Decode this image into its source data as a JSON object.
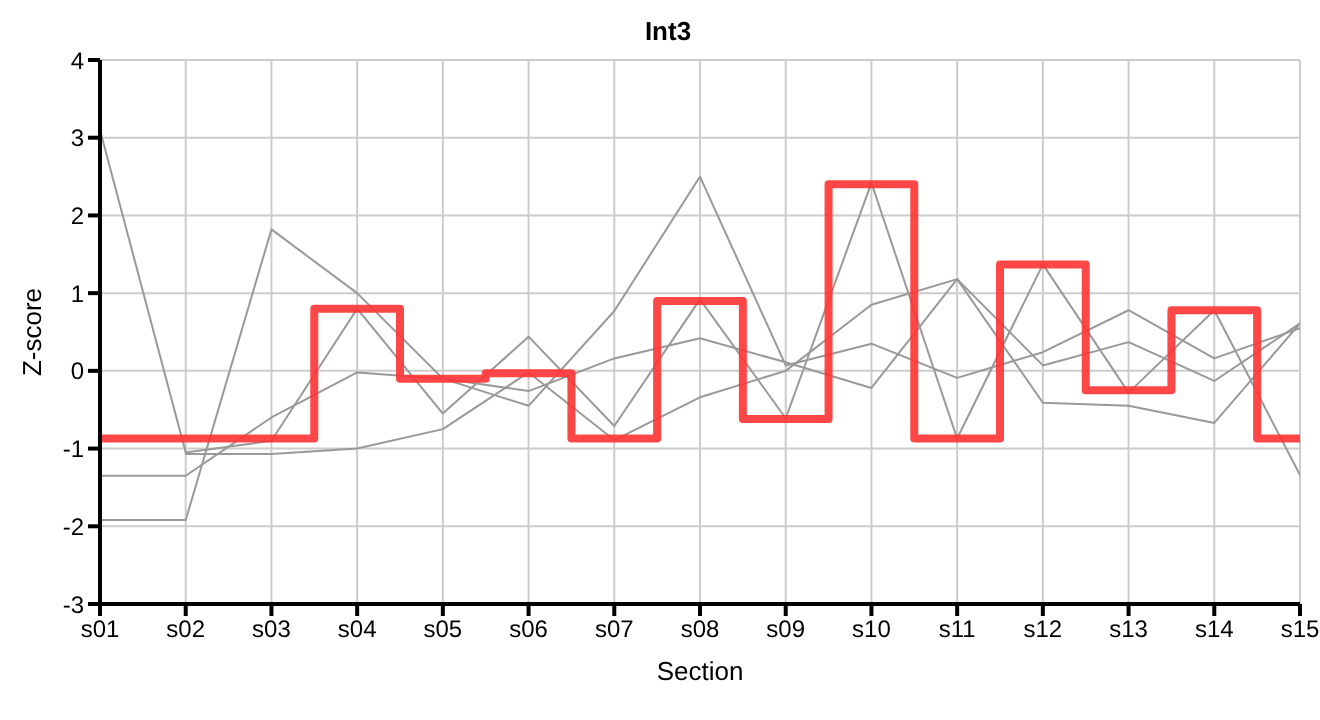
{
  "chart_data": {
    "type": "line",
    "title": "Int3",
    "xlabel": "Section",
    "ylabel": "Z-score",
    "categories": [
      "s01",
      "s02",
      "s03",
      "s04",
      "s05",
      "s06",
      "s07",
      "s08",
      "s09",
      "s10",
      "s11",
      "s12",
      "s13",
      "s14",
      "s15"
    ],
    "series": [
      {
        "color": "#999999",
        "values": [
          3.1,
          -1.05,
          -0.9,
          0.8,
          -0.55,
          0.44,
          -0.71,
          0.92,
          -0.61,
          2.42,
          -0.87,
          1.37,
          -0.28,
          0.78,
          -1.34
        ]
      },
      {
        "color": "#999999",
        "values": [
          -1.35,
          -1.35,
          -0.6,
          -0.02,
          -0.1,
          -0.26,
          0.16,
          0.42,
          0.11,
          -0.22,
          1.18,
          0.07,
          0.37,
          -0.13,
          0.61
        ]
      },
      {
        "color": "#999999",
        "values": [
          -1.92,
          -1.92,
          1.82,
          1.0,
          -0.1,
          -0.45,
          0.77,
          2.5,
          0.07,
          0.35,
          -0.09,
          0.24,
          0.78,
          0.16,
          0.55
        ]
      },
      {
        "color": "#999999",
        "values": [
          null,
          -1.07,
          -1.07,
          -1.0,
          -0.75,
          -0.02,
          -0.89,
          -0.34,
          0.0,
          0.85,
          1.18,
          -0.41,
          -0.45,
          -0.67,
          0.61
        ]
      },
      {
        "type": "step",
        "color": "#ff3333",
        "values": [
          -0.87,
          -0.87,
          -0.87,
          0.8,
          -0.1,
          -0.03,
          -0.87,
          0.9,
          -0.62,
          2.4,
          -0.87,
          1.37,
          -0.25,
          0.78,
          -0.87
        ]
      }
    ],
    "ylim": [
      -3,
      4
    ],
    "yticks": [
      -3,
      -2,
      -1,
      0,
      1,
      2,
      3,
      4
    ],
    "grid": true,
    "marker": "none",
    "line_style": "solid"
  }
}
